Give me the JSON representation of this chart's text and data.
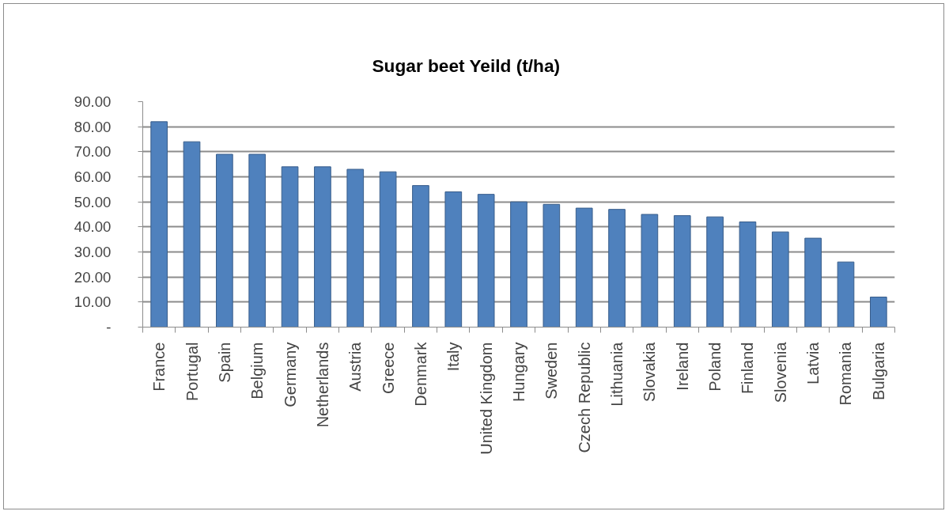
{
  "chart_data": {
    "type": "bar",
    "title": "Sugar beet Yeild  (t/ha)",
    "categories": [
      "France",
      "Portugal",
      "Spain",
      "Belgium",
      "Germany",
      "Netherlands",
      "Austria",
      "Greece",
      "Denmark",
      "Italy",
      "United Kingdom",
      "Hungary",
      "Sweden",
      "Czech Republic",
      "Lithuania",
      "Slovakia",
      "Ireland",
      "Poland",
      "Finland",
      "Slovenia",
      "Latvia",
      "Romania",
      "Bulgaria"
    ],
    "values": [
      82,
      74,
      69,
      69,
      64,
      64,
      63,
      62,
      56.5,
      54,
      53,
      50,
      49,
      47.5,
      47,
      45,
      44.5,
      44,
      42,
      38,
      35.5,
      26,
      12
    ],
    "color": "#4f81bd",
    "ylim": [
      0,
      90
    ],
    "yticks": [
      {
        "value": 0,
        "label": "-"
      },
      {
        "value": 10,
        "label": "10.00"
      },
      {
        "value": 20,
        "label": "20.00"
      },
      {
        "value": 30,
        "label": "30.00"
      },
      {
        "value": 40,
        "label": "40.00"
      },
      {
        "value": 50,
        "label": "50.00"
      },
      {
        "value": 60,
        "label": "60.00"
      },
      {
        "value": 70,
        "label": "70.00"
      },
      {
        "value": 80,
        "label": "80.00"
      },
      {
        "value": 90,
        "label": "90.00"
      }
    ],
    "grid": "y"
  }
}
